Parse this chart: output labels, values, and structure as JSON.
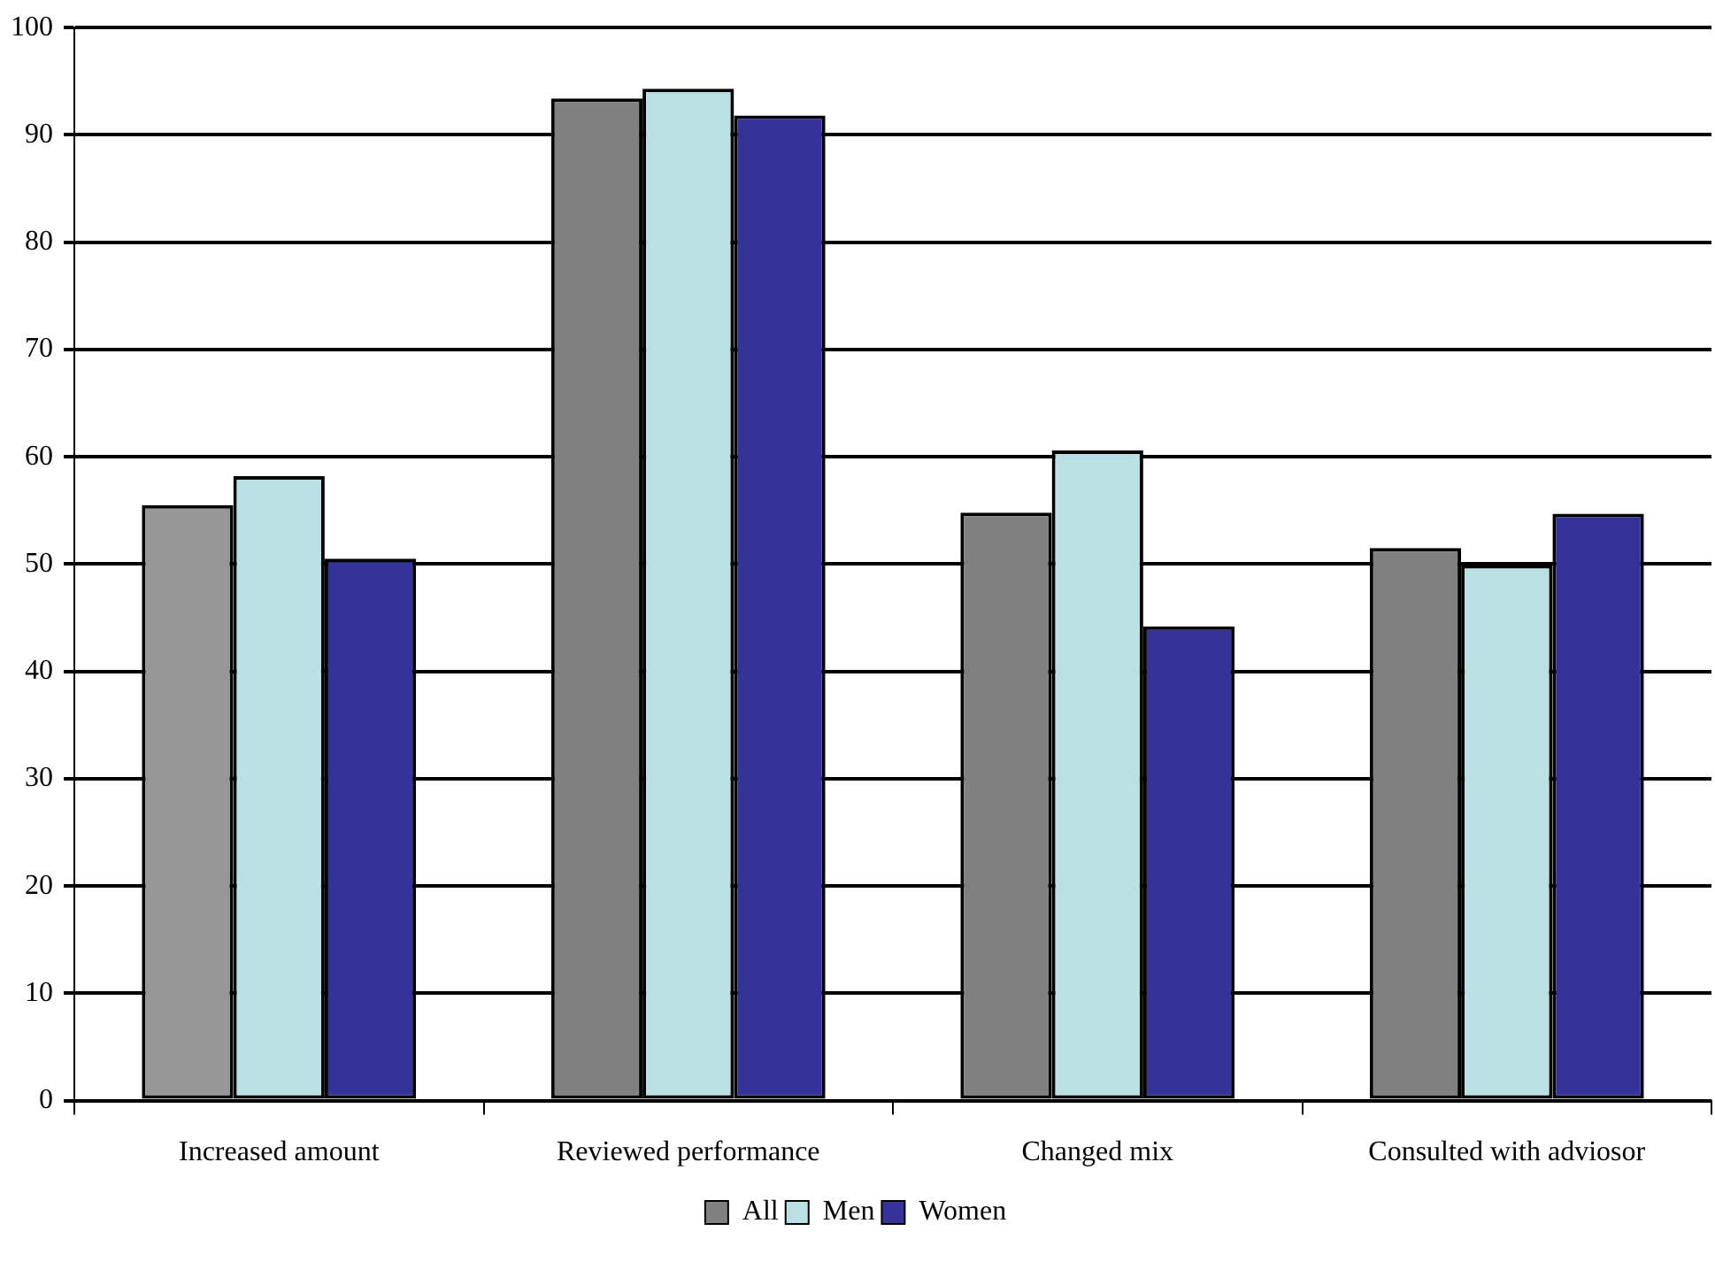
{
  "chart_data": {
    "type": "bar",
    "categories": [
      "Increased amount",
      "Reviewed performance",
      "Changed mix",
      "Consulted with adviosor"
    ],
    "series": [
      {
        "name": "All",
        "color": "#808080",
        "colors": [
          "#969696",
          "#808080",
          "#808080",
          "#808080"
        ],
        "values": [
          55.5,
          93.4,
          54.8,
          51.5
        ]
      },
      {
        "name": "Men",
        "color": "#bbe0e3",
        "values": [
          58.2,
          94.3,
          60.6,
          49.9
        ]
      },
      {
        "name": "Women",
        "color": "#333399",
        "values": [
          50.5,
          91.8,
          44.2,
          54.7
        ]
      }
    ],
    "ylim": [
      0,
      100
    ],
    "yticks": [
      0,
      10,
      20,
      30,
      40,
      50,
      60,
      70,
      80,
      90,
      100
    ],
    "grid": "y",
    "legend": "bottom"
  }
}
